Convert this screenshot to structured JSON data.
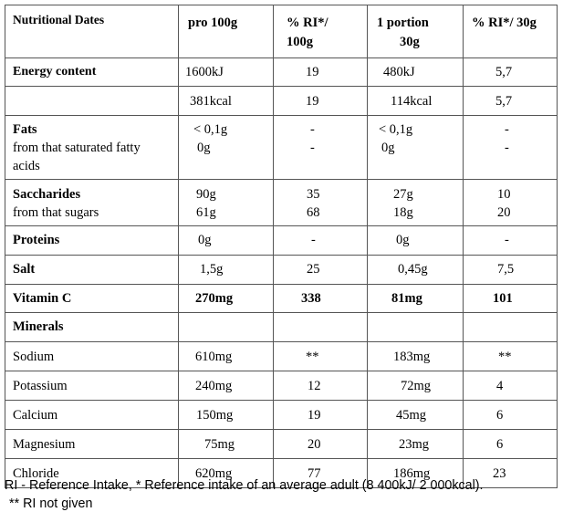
{
  "header": {
    "col0": "Nutritional Dates",
    "col1": "pro 100g",
    "col2_line1": "% RI*/",
    "col2_line2": "100g",
    "col3_line1": "1 portion",
    "col3_line2": "30g",
    "col4": "% RI*/ 30g"
  },
  "energy": {
    "label": "Energy content",
    "kj": [
      "1600kJ",
      "19",
      "480kJ",
      "5,7"
    ],
    "kcal": [
      "381kcal",
      "19",
      "114kcal",
      "5,7"
    ]
  },
  "fats": {
    "label": "Fats",
    "sub_line1": "from that saturated fatty",
    "sub_line2": "acids",
    "v100": "< 0,1g",
    "v100_sub": "0g",
    "ri100": "-",
    "ri100_sub": "-",
    "vportion": "< 0,1g",
    "vportion_sub": "0g",
    "riportion": "-",
    "riportion_sub": "-"
  },
  "saccharides": {
    "label": "Saccharides",
    "sub": "from that sugars",
    "v100": "90g",
    "v100_sub": "61g",
    "ri100": "35",
    "ri100_sub": "68",
    "vportion": "27g",
    "vportion_sub": "18g",
    "riportion": "10",
    "riportion_sub": "20"
  },
  "proteins": {
    "label": "Proteins",
    "v100": "0g",
    "ri100": "-",
    "vportion": "0g",
    "riportion": "-"
  },
  "salt": {
    "label": "Salt",
    "v100": "1,5g",
    "ri100": "25",
    "vportion": "0,45g",
    "riportion": "7,5"
  },
  "vitamin_c": {
    "label": "Vitamin C",
    "v100": "270mg",
    "ri100": "338",
    "vportion": "81mg",
    "riportion": "101"
  },
  "minerals_label": "Minerals",
  "minerals": [
    {
      "label": "Sodium",
      "v100": "610mg",
      "ri100": "**",
      "vportion": "183mg",
      "riportion": "**"
    },
    {
      "label": "Potassium",
      "v100": "240mg",
      "ri100": "12",
      "vportion": "72mg",
      "riportion": "4"
    },
    {
      "label": "Calcium",
      "v100": "150mg",
      "ri100": "19",
      "vportion": "45mg",
      "riportion": "6"
    },
    {
      "label": "Magnesium",
      "v100": "75mg",
      "ri100": "20",
      "vportion": "23mg",
      "riportion": "6"
    },
    {
      "label": "Chloride",
      "v100": "620mg",
      "ri100": "77",
      "vportion": "186mg",
      "riportion": "23"
    }
  ],
  "footer": {
    "line1": "RI - Reference Intake, * Reference intake of an average adult (8 400kJ/ 2 000kcal).",
    "line2": "** RI not given"
  }
}
